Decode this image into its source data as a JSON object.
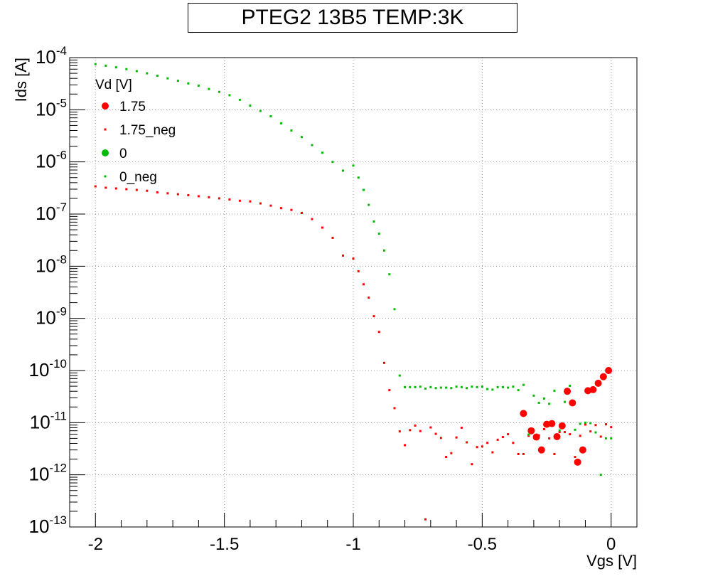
{
  "chart_data": {
    "type": "scatter",
    "title": "PTEG2 13B5 TEMP:3K",
    "xlabel": "Vgs [V]",
    "ylabel": "Ids [A]",
    "xlim": [
      -2.1,
      0.1
    ],
    "ylim": [
      1e-13,
      0.0001
    ],
    "yscale": "log",
    "grid": true,
    "legend_title": "Vd [V]",
    "legend_position": "top-left",
    "x_ticks": [
      -2,
      -1.5,
      -1,
      -0.5,
      0
    ],
    "x_tick_labels": [
      "-2",
      "-1.5",
      "-1",
      "-0.5",
      "0"
    ],
    "y_ticks": [
      1e-13,
      1e-12,
      1e-11,
      1e-10,
      1e-09,
      1e-08,
      1e-07,
      1e-06,
      1e-05,
      0.0001
    ],
    "y_tick_base": "10",
    "y_tick_exponents": [
      "-13",
      "-12",
      "-11",
      "-10",
      "-9",
      "-8",
      "-7",
      "-6",
      "-5",
      "-4"
    ],
    "series": [
      {
        "name": "1.75",
        "color": "#ff0000",
        "marker": "circle",
        "x": [
          -0.34,
          -0.31,
          -0.29,
          -0.27,
          -0.25,
          -0.23,
          -0.21,
          -0.19,
          -0.17,
          -0.15,
          -0.13,
          -0.11,
          -0.09,
          -0.07,
          -0.05,
          -0.03,
          -0.01
        ],
        "y": [
          1.5e-11,
          7e-12,
          5.3e-12,
          3e-12,
          9.3e-12,
          9.6e-12,
          5.4e-12,
          8.7e-12,
          4e-11,
          2.4e-11,
          1.75e-12,
          3e-12,
          4.1e-11,
          4.3e-11,
          5.7e-11,
          7.6e-11,
          1e-10
        ]
      },
      {
        "name": "1.75_neg",
        "color": "#ff0000",
        "marker": "square",
        "x": [
          -2.0,
          -1.96,
          -1.92,
          -1.88,
          -1.84,
          -1.8,
          -1.76,
          -1.72,
          -1.68,
          -1.64,
          -1.6,
          -1.56,
          -1.52,
          -1.48,
          -1.44,
          -1.4,
          -1.36,
          -1.32,
          -1.28,
          -1.24,
          -1.2,
          -1.16,
          -1.12,
          -1.08,
          -1.04,
          -1.0,
          -0.98,
          -0.96,
          -0.94,
          -0.92,
          -0.9,
          -0.88,
          -0.86,
          -0.84,
          -0.82,
          -0.8,
          -0.78,
          -0.76,
          -0.74,
          -0.72,
          -0.7,
          -0.68,
          -0.66,
          -0.64,
          -0.62,
          -0.6,
          -0.58,
          -0.56,
          -0.54,
          -0.52,
          -0.5,
          -0.48,
          -0.46,
          -0.44,
          -0.42,
          -0.4,
          -0.38,
          -0.36,
          -0.34,
          -0.32,
          -0.3,
          -0.28,
          -0.26,
          -0.24,
          -0.22,
          -0.2,
          -0.18,
          -0.16,
          -0.14,
          -0.12,
          -0.1,
          -0.08,
          -0.06,
          -0.04,
          -0.02,
          0.0
        ],
        "y": [
          3.4e-07,
          3.2e-07,
          3.1e-07,
          3e-07,
          2.9e-07,
          2.8e-07,
          2.6e-07,
          2.5e-07,
          2.4e-07,
          2.3e-07,
          2.2e-07,
          2.1e-07,
          2e-07,
          1.9e-07,
          1.8e-07,
          1.75e-07,
          1.6e-07,
          1.45e-07,
          1.3e-07,
          1.2e-07,
          1.05e-07,
          8e-08,
          5.5e-08,
          3.5e-08,
          1.6e-08,
          1.4e-08,
          8e-09,
          4.5e-09,
          2.5e-09,
          1.1e-09,
          5.5e-10,
          1.4e-10,
          4.2e-11,
          1.9e-11,
          6.8e-12,
          3.7e-12,
          7.2e-12,
          8.8e-12,
          6.9e-12,
          1.4e-13,
          8.1e-12,
          6.1e-12,
          5.1e-12,
          2.2e-12,
          2.6e-12,
          5.2e-12,
          8e-12,
          4.2e-12,
          1.6e-12,
          3.4e-12,
          3.5e-12,
          4.1e-12,
          2.7e-12,
          4.7e-12,
          5.3e-12,
          6e-12,
          4.1e-12,
          2.5e-12,
          2.5e-12,
          5.6e-12,
          7.1e-12,
          5.7e-12,
          7.5e-12,
          5e-12,
          2.5e-12,
          6.6e-12,
          6.6e-12,
          6e-12,
          2.2e-12,
          5.6e-12,
          9.2e-12,
          6.8e-12,
          9e-12,
          5.4e-12,
          9.3e-12,
          8.2e-12
        ]
      },
      {
        "name": "0",
        "color": "#00bb00",
        "marker": "circle",
        "x": [],
        "y": []
      },
      {
        "name": "0_neg",
        "color": "#00bb00",
        "marker": "square",
        "x": [
          -2.0,
          -1.96,
          -1.92,
          -1.88,
          -1.84,
          -1.8,
          -1.76,
          -1.72,
          -1.68,
          -1.64,
          -1.6,
          -1.56,
          -1.52,
          -1.48,
          -1.44,
          -1.4,
          -1.36,
          -1.32,
          -1.28,
          -1.24,
          -1.2,
          -1.16,
          -1.12,
          -1.08,
          -1.04,
          -1.0,
          -0.98,
          -0.96,
          -0.94,
          -0.92,
          -0.9,
          -0.88,
          -0.86,
          -0.84,
          -0.82,
          -0.8,
          -0.78,
          -0.76,
          -0.74,
          -0.72,
          -0.7,
          -0.68,
          -0.66,
          -0.64,
          -0.62,
          -0.6,
          -0.58,
          -0.56,
          -0.54,
          -0.52,
          -0.5,
          -0.48,
          -0.46,
          -0.44,
          -0.42,
          -0.4,
          -0.38,
          -0.36,
          -0.34,
          -0.32,
          -0.3,
          -0.28,
          -0.26,
          -0.24,
          -0.22,
          -0.2,
          -0.18,
          -0.16,
          -0.14,
          -0.12,
          -0.1,
          -0.08,
          -0.06,
          -0.04,
          -0.02,
          0.0
        ],
        "y": [
          7.5e-05,
          7e-05,
          6.5e-05,
          6e-05,
          5.5e-05,
          5e-05,
          4.5e-05,
          4e-05,
          3.6e-05,
          3.2e-05,
          2.9e-05,
          2.5e-05,
          2.2e-05,
          1.9e-05,
          1.55e-05,
          1.2e-05,
          9.5e-06,
          7.5e-06,
          5.5e-06,
          4e-06,
          3e-06,
          2.1e-06,
          1.5e-06,
          1e-06,
          6.8e-07,
          8.5e-07,
          5e-07,
          2.9e-07,
          1.5e-07,
          7.2e-08,
          4.2e-08,
          2e-08,
          7e-09,
          1.5e-09,
          8e-11,
          4.8e-11,
          4.8e-11,
          4.8e-11,
          4.9e-11,
          4.5e-11,
          4.8e-11,
          4.6e-11,
          4.7e-11,
          4.7e-11,
          4.6e-11,
          4.9e-11,
          4.8e-11,
          4.6e-11,
          4.9e-11,
          4.8e-11,
          4.9e-11,
          4.4e-11,
          4.3e-11,
          4.8e-11,
          4.8e-11,
          4.7e-11,
          4.9e-11,
          4.2e-11,
          5.3e-11,
          5.9e-12,
          3.3e-11,
          2.4e-11,
          2.9e-11,
          2.3e-11,
          4.1e-11,
          7.1e-12,
          2.5e-11,
          5.1e-11,
          7.3e-12,
          9.5e-12,
          1e-11,
          9.8e-12,
          6.5e-12,
          1e-12,
          5e-12,
          5e-12
        ]
      }
    ]
  }
}
